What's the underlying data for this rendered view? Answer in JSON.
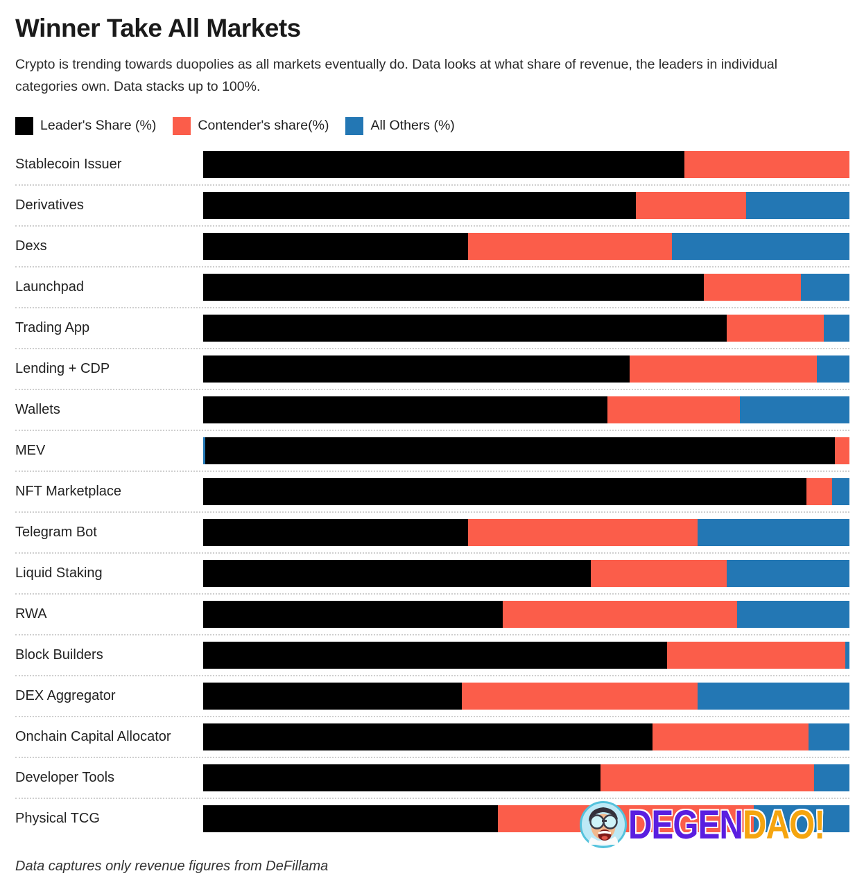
{
  "title": "Winner Take All Markets",
  "subtitle": "Crypto is trending towards duopolies as all markets eventually do. Data looks at what share of revenue, the leaders in individual categories own. Data stacks up to 100%.",
  "footer_note": "Data captures only revenue figures from DeFillama",
  "logo": {
    "text_primary": "DEGEN",
    "text_secondary": "DAO!",
    "primary_color": "#5A1EE0",
    "secondary_color": "#F5A50F"
  },
  "legend": [
    {
      "series": "leader",
      "label": "Leader's Share (%)"
    },
    {
      "series": "contender",
      "label": "Contender's share(%)"
    },
    {
      "series": "others",
      "label": "All Others (%)"
    }
  ],
  "chart_data": {
    "type": "bar",
    "orientation": "horizontal",
    "stacked": true,
    "x_range": [
      0,
      100
    ],
    "grid": false,
    "legend_position": "top",
    "colors": {
      "leader": "#000000",
      "contender": "#FB5D4A",
      "others": "#2377B4"
    },
    "series_names": {
      "leader": "Leader's Share (%)",
      "contender": "Contender's share(%)",
      "others": "All Others (%)"
    },
    "rows": [
      {
        "label": "Stablecoin Issuer",
        "segments": [
          {
            "series": "leader",
            "value": 74.5
          },
          {
            "series": "contender",
            "value": 25.5
          }
        ]
      },
      {
        "label": "Derivatives",
        "segments": [
          {
            "series": "leader",
            "value": 67
          },
          {
            "series": "contender",
            "value": 17
          },
          {
            "series": "others",
            "value": 16
          }
        ]
      },
      {
        "label": "Dexs",
        "segments": [
          {
            "series": "leader",
            "value": 41
          },
          {
            "series": "contender",
            "value": 31.5
          },
          {
            "series": "others",
            "value": 27.5
          }
        ]
      },
      {
        "label": "Launchpad",
        "segments": [
          {
            "series": "leader",
            "value": 77.5
          },
          {
            "series": "contender",
            "value": 15
          },
          {
            "series": "others",
            "value": 7.5
          }
        ]
      },
      {
        "label": "Trading App",
        "segments": [
          {
            "series": "leader",
            "value": 81
          },
          {
            "series": "contender",
            "value": 15
          },
          {
            "series": "others",
            "value": 4
          }
        ]
      },
      {
        "label": "Lending + CDP",
        "segments": [
          {
            "series": "leader",
            "value": 66
          },
          {
            "series": "contender",
            "value": 29
          },
          {
            "series": "others",
            "value": 5
          }
        ]
      },
      {
        "label": "Wallets",
        "segments": [
          {
            "series": "leader",
            "value": 62.5
          },
          {
            "series": "contender",
            "value": 20.5
          },
          {
            "series": "others",
            "value": 17
          }
        ]
      },
      {
        "label": "MEV",
        "segments": [
          {
            "series": "others",
            "value": 0.3
          },
          {
            "series": "leader",
            "value": 97.4
          },
          {
            "series": "contender",
            "value": 2.3
          }
        ]
      },
      {
        "label": "NFT Marketplace",
        "segments": [
          {
            "series": "leader",
            "value": 93.3
          },
          {
            "series": "contender",
            "value": 4
          },
          {
            "series": "others",
            "value": 2.7
          }
        ]
      },
      {
        "label": "Telegram Bot",
        "segments": [
          {
            "series": "leader",
            "value": 41
          },
          {
            "series": "contender",
            "value": 35.5
          },
          {
            "series": "others",
            "value": 23.5
          }
        ]
      },
      {
        "label": "Liquid Staking",
        "segments": [
          {
            "series": "leader",
            "value": 60
          },
          {
            "series": "contender",
            "value": 21
          },
          {
            "series": "others",
            "value": 19
          }
        ]
      },
      {
        "label": "RWA",
        "segments": [
          {
            "series": "leader",
            "value": 46.3
          },
          {
            "series": "contender",
            "value": 36.3
          },
          {
            "series": "others",
            "value": 17.4
          }
        ]
      },
      {
        "label": "Block Builders",
        "segments": [
          {
            "series": "leader",
            "value": 71.8
          },
          {
            "series": "contender",
            "value": 27.6
          },
          {
            "series": "others",
            "value": 0.6
          }
        ]
      },
      {
        "label": "DEX Aggregator",
        "segments": [
          {
            "series": "leader",
            "value": 40
          },
          {
            "series": "contender",
            "value": 36.5
          },
          {
            "series": "others",
            "value": 23.5
          }
        ]
      },
      {
        "label": "Onchain Capital Allocator",
        "segments": [
          {
            "series": "leader",
            "value": 69.5
          },
          {
            "series": "contender",
            "value": 24.2
          },
          {
            "series": "others",
            "value": 6.3
          }
        ]
      },
      {
        "label": "Developer Tools",
        "segments": [
          {
            "series": "leader",
            "value": 61.5
          },
          {
            "series": "contender",
            "value": 33
          },
          {
            "series": "others",
            "value": 5.5
          }
        ]
      },
      {
        "label": "Physical TCG",
        "segments": [
          {
            "series": "leader",
            "value": 45.6
          },
          {
            "series": "contender",
            "value": 39.6
          },
          {
            "series": "others",
            "value": 14.8
          }
        ]
      }
    ]
  }
}
